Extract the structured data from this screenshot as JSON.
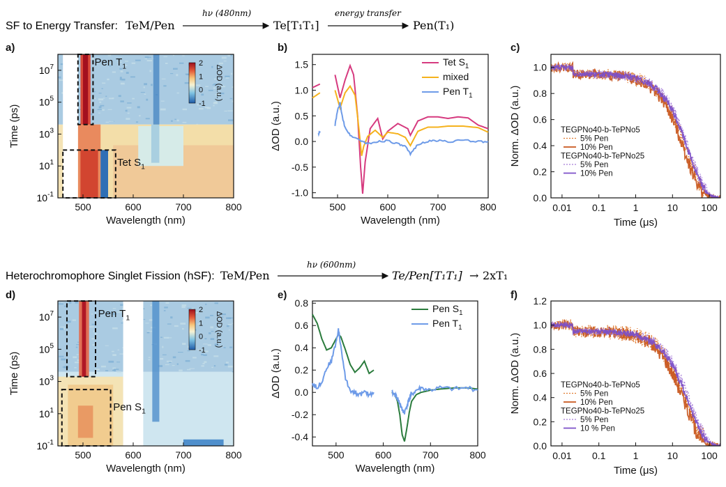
{
  "schemes": [
    {
      "prefix": "SF to Energy Transfer: ",
      "reactant": "TeM/Pen",
      "arrow1_label": "hν (480nm)",
      "middle": "Te[T₁T₁]",
      "arrow2_label": "energy transfer",
      "product": "Pen(T₁)"
    },
    {
      "prefix": "Heterochromophore Singlet Fission (hSF): ",
      "reactant": "TeM/Pen",
      "arrow1_label": "hν (600nm)",
      "middle": "Te/Pen[T₁T₁]",
      "arrow2_label": "",
      "product": "2xT₁"
    }
  ],
  "colors": {
    "tet_s1": "#d63a7f",
    "mixed": "#f5b21c",
    "pen_t1": "#6e9be8",
    "pen_s1": "#2a7b3c",
    "orange_dashed": "#e0792e",
    "orange_solid": "#c8561c",
    "purple_dashed": "#a47ad8",
    "purple_solid": "#7b4fc9"
  },
  "chart_data": [
    {
      "id": "a",
      "panel_label": "a)",
      "type": "heatmap",
      "xlabel": "Wavelength (nm)",
      "ylabel": "Time (ps)",
      "xlim": [
        450,
        800
      ],
      "ylim_log10": [
        -1,
        8
      ],
      "x_ticks": [
        500,
        600,
        700,
        800
      ],
      "y_ticks": [
        "10",
        "10",
        "10",
        "10",
        "10"
      ],
      "y_tick_exps": [
        "-1",
        "1",
        "3",
        "5",
        "7"
      ],
      "y_tick_values": [
        0.1,
        10,
        1000,
        100000,
        10000000
      ],
      "colorbar_label": "ΔOD (a.u.)",
      "colorbar_ticks": [
        "2",
        "1",
        "0",
        "-1"
      ],
      "colorbar_range": [
        -1,
        2
      ],
      "annotations": [
        {
          "text": "Pen T",
          "sub": "1"
        },
        {
          "text": "Tet S",
          "sub": "1"
        }
      ],
      "boxes": [
        {
          "x": [
            490,
            520
          ],
          "y_log10": [
            3.6,
            8
          ]
        },
        {
          "x": [
            460,
            565
          ],
          "y_log10": [
            -1,
            2
          ]
        }
      ],
      "gap_nm": [
        460,
        490
      ]
    },
    {
      "id": "b",
      "panel_label": "b)",
      "type": "line",
      "xlabel": "Wavelength (nm)",
      "ylabel": "ΔOD (a.u.)",
      "xlim": [
        450,
        800
      ],
      "ylim": [
        -1.1,
        1.7
      ],
      "x_ticks": [
        500,
        600,
        700,
        800
      ],
      "y_ticks": [
        -1.0,
        -0.5,
        0.0,
        0.5,
        1.0,
        1.5
      ],
      "y_tick_labels": [
        "-1.0",
        "-0.5",
        "0.0",
        "0.5",
        "1.0",
        "1.5"
      ],
      "legend_position": "top-right",
      "series": [
        {
          "name": "Tet S",
          "name_sub": "1",
          "color_key": "tet_s1",
          "segments": [
            {
              "x": [
                450,
                465
              ],
              "y": [
                1.05,
                1.12
              ]
            },
            {
              "x": [
                495,
                505,
                515,
                525,
                532,
                540,
                546,
                550,
                555,
                565,
                580,
                590,
                600,
                620,
                640,
                645,
                660,
                680,
                700,
                720,
                740,
                760,
                780,
                800
              ],
              "y": [
                1.3,
                0.85,
                1.2,
                1.48,
                1.3,
                0.5,
                -0.5,
                -1.02,
                -0.4,
                0.25,
                0.45,
                0.05,
                0.2,
                0.35,
                0.25,
                0.12,
                0.4,
                0.48,
                0.48,
                0.45,
                0.48,
                0.46,
                0.32,
                0.25
              ]
            }
          ]
        },
        {
          "name": "mixed",
          "name_sub": "",
          "color_key": "mixed",
          "segments": [
            {
              "x": [
                450,
                465
              ],
              "y": [
                0.85,
                0.95
              ]
            },
            {
              "x": [
                495,
                505,
                515,
                525,
                535,
                542,
                548,
                552,
                560,
                575,
                590,
                600,
                620,
                635,
                645,
                660,
                680,
                700,
                720,
                750,
                780,
                800
              ],
              "y": [
                1.0,
                0.65,
                0.95,
                1.08,
                0.9,
                0.3,
                -0.28,
                -0.1,
                0.1,
                0.22,
                0.08,
                0.18,
                0.15,
                0.08,
                -0.08,
                0.2,
                0.28,
                0.28,
                0.3,
                0.3,
                0.27,
                0.18
              ]
            }
          ]
        },
        {
          "name": "Pen T",
          "name_sub": "1",
          "color_key": "pen_t1",
          "segments": [
            {
              "x": [
                462,
                465
              ],
              "y": [
                0.15,
                0.2
              ]
            },
            {
              "x": [
                495,
                500,
                505,
                510,
                515,
                525,
                540,
                550,
                560,
                580,
                600,
                620,
                635,
                645,
                660,
                680,
                700,
                720,
                750,
                780,
                800
              ],
              "y": [
                0.32,
                0.6,
                0.75,
                0.45,
                0.28,
                0.12,
                0.05,
                0.0,
                -0.05,
                0.0,
                0.02,
                -0.05,
                -0.1,
                -0.25,
                -0.05,
                0.0,
                0.02,
                0.0,
                0.02,
                0.0,
                0.0
              ]
            }
          ]
        }
      ]
    },
    {
      "id": "c",
      "panel_label": "c)",
      "type": "line",
      "xlabel": "Time (μs)",
      "ylabel": "Norm. ΔOD (a.u.)",
      "x_scale": "log",
      "xlim": [
        0.005,
        200
      ],
      "ylim": [
        0,
        1.1
      ],
      "x_ticks": [
        0.01,
        0.1,
        1,
        10,
        100
      ],
      "x_tick_labels": [
        "0.01",
        "0.1",
        "1",
        "10",
        "100"
      ],
      "y_ticks": [
        0.0,
        0.2,
        0.4,
        0.6,
        0.8,
        1.0
      ],
      "y_tick_labels": [
        "0.0",
        "0.2",
        "0.4",
        "0.6",
        "0.8",
        "1.0"
      ],
      "legend_position": "center-left",
      "legend_groups": [
        "TEGPNo40-b-TePNo5",
        "TEGPNo40-b-TePNo25"
      ],
      "series": [
        {
          "name": "5% Pen",
          "group": 0,
          "color_key": "orange_dashed",
          "dash": true,
          "tau": 25,
          "noise": 0.07
        },
        {
          "name": "10% Pen",
          "group": 0,
          "color_key": "orange_solid",
          "dash": false,
          "tau": 22,
          "noise": 0.06
        },
        {
          "name": "5% Pen",
          "group": 1,
          "color_key": "purple_dashed",
          "dash": true,
          "tau": 30,
          "noise": 0.05
        },
        {
          "name": "10% Pen",
          "group": 1,
          "color_key": "purple_solid",
          "dash": false,
          "tau": 28,
          "noise": 0.03
        }
      ]
    },
    {
      "id": "d",
      "panel_label": "d)",
      "type": "heatmap",
      "xlabel": "Wavelength (nm)",
      "ylabel": "Time (ps)",
      "xlim": [
        450,
        800
      ],
      "ylim_log10": [
        -1,
        8
      ],
      "x_ticks": [
        500,
        600,
        700,
        800
      ],
      "y_ticks": [
        "10",
        "10",
        "10",
        "10",
        "10"
      ],
      "y_tick_exps": [
        "-1",
        "1",
        "3",
        "5",
        "7"
      ],
      "y_tick_values": [
        0.1,
        10,
        1000,
        100000,
        10000000
      ],
      "colorbar_label": "ΔOD (a.u.)",
      "colorbar_ticks": [
        "2",
        "1",
        "0",
        "-1"
      ],
      "colorbar_range": [
        -1,
        2
      ],
      "annotations": [
        {
          "text": "Pen T",
          "sub": "1"
        },
        {
          "text": "Pen S",
          "sub": "1"
        }
      ],
      "boxes": [
        {
          "x": [
            468,
            525
          ],
          "y_log10": [
            3.3,
            8
          ]
        },
        {
          "x": [
            458,
            555
          ],
          "y_log10": [
            -1,
            2.5
          ]
        }
      ],
      "gap_nm": [
        580,
        620
      ]
    },
    {
      "id": "e",
      "panel_label": "e)",
      "type": "line",
      "xlabel": "Wavelength (nm)",
      "ylabel": "ΔOD (a.u.)",
      "xlim": [
        450,
        800
      ],
      "ylim": [
        -0.48,
        0.82
      ],
      "x_ticks": [
        500,
        600,
        700,
        800
      ],
      "y_ticks": [
        -0.4,
        -0.2,
        0.0,
        0.2,
        0.4,
        0.6,
        0.8
      ],
      "y_tick_labels": [
        "-0.4",
        "-0.2",
        "0.0",
        "0.2",
        "0.4",
        "0.6",
        "0.8"
      ],
      "legend_position": "top-right",
      "series": [
        {
          "name": "Pen S",
          "name_sub": "1",
          "color_key": "pen_s1",
          "segments": [
            {
              "x": [
                450,
                460,
                470,
                480,
                490,
                500,
                505,
                510,
                520,
                530,
                540,
                550,
                560,
                570,
                580
              ],
              "y": [
                0.7,
                0.62,
                0.48,
                0.38,
                0.4,
                0.48,
                0.52,
                0.5,
                0.38,
                0.25,
                0.18,
                0.22,
                0.28,
                0.17,
                0.2
              ]
            },
            {
              "x": [
                618,
                625,
                630,
                635,
                640,
                645,
                650,
                655,
                660,
                670,
                680,
                700,
                720,
                750,
                780,
                800
              ],
              "y": [
                0.0,
                -0.02,
                -0.08,
                -0.2,
                -0.38,
                -0.44,
                -0.32,
                -0.18,
                -0.08,
                -0.02,
                0.0,
                0.02,
                0.03,
                0.04,
                0.04,
                0.03
              ]
            }
          ]
        },
        {
          "name": "Pen T",
          "name_sub": "1",
          "color_key": "pen_t1",
          "segments": [
            {
              "x": [
                450,
                460,
                470,
                480,
                490,
                500,
                505,
                510,
                520,
                530,
                540,
                550,
                560,
                570,
                580
              ],
              "y": [
                0.08,
                0.04,
                0.1,
                0.22,
                0.28,
                0.45,
                0.56,
                0.42,
                0.12,
                0.02,
                0.0,
                -0.02,
                0.0,
                -0.02,
                0.0
              ]
            },
            {
              "x": [
                618,
                625,
                630,
                635,
                640,
                645,
                650,
                655,
                660,
                670,
                680,
                700,
                720,
                750,
                780,
                800
              ],
              "y": [
                0.0,
                -0.02,
                -0.05,
                -0.1,
                -0.16,
                -0.18,
                -0.12,
                -0.06,
                -0.02,
                0.02,
                0.04,
                0.02,
                0.04,
                0.03,
                0.04,
                0.02
              ]
            }
          ]
        }
      ]
    },
    {
      "id": "f",
      "panel_label": "f)",
      "type": "line",
      "xlabel": "Time (μs)",
      "ylabel": "Norm. ΔOD (a.u.)",
      "x_scale": "log",
      "xlim": [
        0.005,
        200
      ],
      "ylim": [
        0,
        1.2
      ],
      "x_ticks": [
        0.01,
        0.1,
        1,
        10,
        100
      ],
      "x_tick_labels": [
        "0.01",
        "0.1",
        "1",
        "10",
        "100"
      ],
      "y_ticks": [
        0.0,
        0.2,
        0.4,
        0.6,
        0.8,
        1.0,
        1.2
      ],
      "y_tick_labels": [
        "0.0",
        "0.2",
        "0.4",
        "0.6",
        "0.8",
        "1.0",
        "1.2"
      ],
      "legend_position": "bottom-left",
      "legend_groups": [
        "TEGPNo40-b-TePNo5",
        "TEGPNo40-b-TePNo25"
      ],
      "series": [
        {
          "name": "5% Pen",
          "group": 0,
          "color_key": "orange_dashed",
          "dash": true,
          "tau": 25,
          "noise": 0.09
        },
        {
          "name": "10% Pen",
          "group": 0,
          "color_key": "orange_solid",
          "dash": false,
          "tau": 22,
          "noise": 0.07
        },
        {
          "name": "5% Pen",
          "group": 1,
          "color_key": "purple_dashed",
          "dash": true,
          "tau": 32,
          "noise": 0.05
        },
        {
          "name": "10 % Pen",
          "group": 1,
          "color_key": "purple_solid",
          "dash": false,
          "tau": 28,
          "noise": 0.03
        }
      ]
    }
  ]
}
